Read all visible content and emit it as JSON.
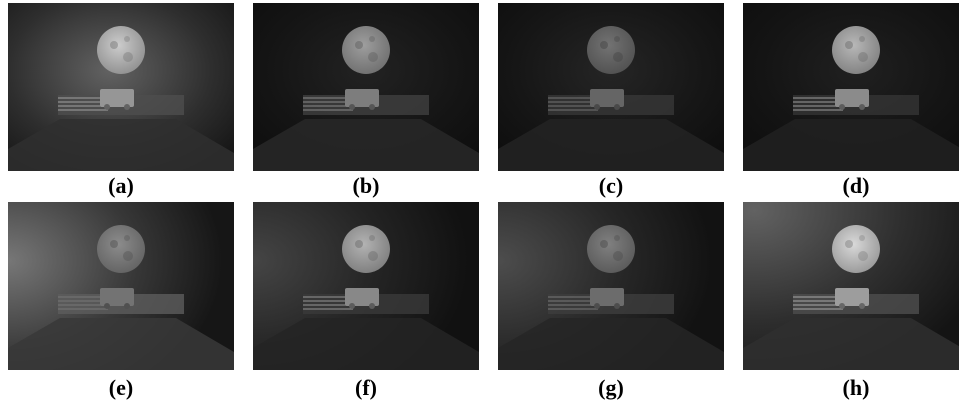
{
  "figure": {
    "panels": [
      {
        "id": "a",
        "caption": "(a)",
        "haze": 0.55,
        "moon": 0.8,
        "floor": 0.3,
        "glow": "center"
      },
      {
        "id": "b",
        "caption": "(b)",
        "haze": 0.1,
        "moon": 0.62,
        "floor": 0.22,
        "glow": "none"
      },
      {
        "id": "c",
        "caption": "(c)",
        "haze": 0.12,
        "moon": 0.45,
        "floor": 0.16,
        "glow": "none"
      },
      {
        "id": "d",
        "caption": "(d)",
        "haze": 0.08,
        "moon": 0.72,
        "floor": 0.14,
        "glow": "none"
      },
      {
        "id": "e",
        "caption": "(e)",
        "haze": 0.7,
        "moon": 0.55,
        "floor": 0.4,
        "glow": "left"
      },
      {
        "id": "f",
        "caption": "(f)",
        "haze": 0.35,
        "moon": 0.7,
        "floor": 0.18,
        "glow": "left"
      },
      {
        "id": "g",
        "caption": "(g)",
        "haze": 0.4,
        "moon": 0.5,
        "floor": 0.2,
        "glow": "left"
      },
      {
        "id": "h",
        "caption": "(h)",
        "haze": 0.55,
        "moon": 0.85,
        "floor": 0.3,
        "glow": "topleft"
      }
    ]
  }
}
